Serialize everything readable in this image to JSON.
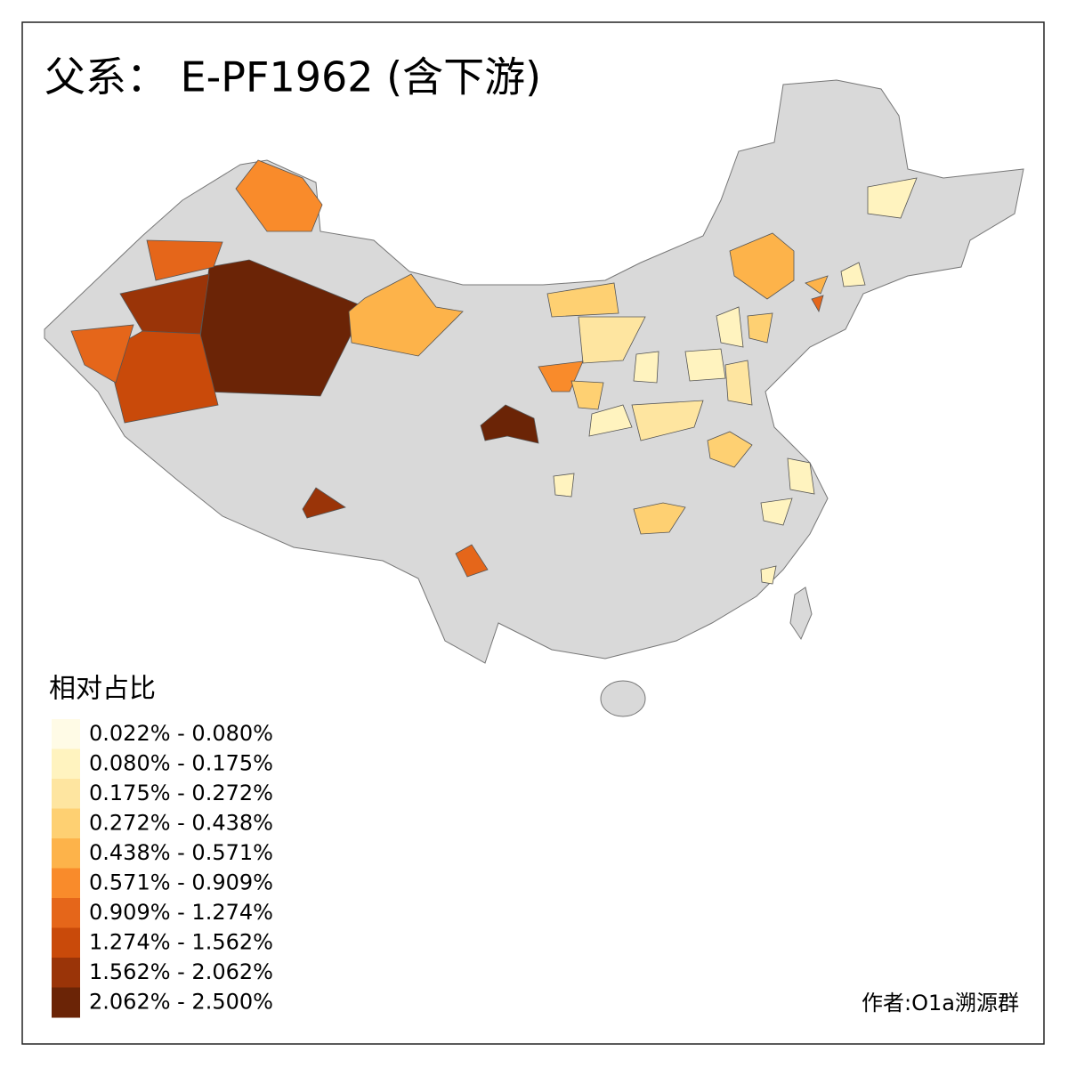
{
  "title": "父系： E-PF1962 (含下游)",
  "legend": {
    "title": "相对占比",
    "items": [
      {
        "label": "0.022% - 0.080%",
        "color": "#fffbe6"
      },
      {
        "label": "0.080% - 0.175%",
        "color": "#fff3bf"
      },
      {
        "label": "0.175% - 0.272%",
        "color": "#fee5a0"
      },
      {
        "label": "0.272% - 0.438%",
        "color": "#fed072"
      },
      {
        "label": "0.438% - 0.571%",
        "color": "#fdb34a"
      },
      {
        "label": "0.571% - 0.909%",
        "color": "#f98b2b"
      },
      {
        "label": "0.909% - 1.274%",
        "color": "#e5661a"
      },
      {
        "label": "1.274% - 1.562%",
        "color": "#c94a0a"
      },
      {
        "label": "1.562% - 2.062%",
        "color": "#9a3408"
      },
      {
        "label": "2.062% - 2.500%",
        "color": "#6b2406"
      }
    ]
  },
  "credit": "作者:O1a溯源群"
}
